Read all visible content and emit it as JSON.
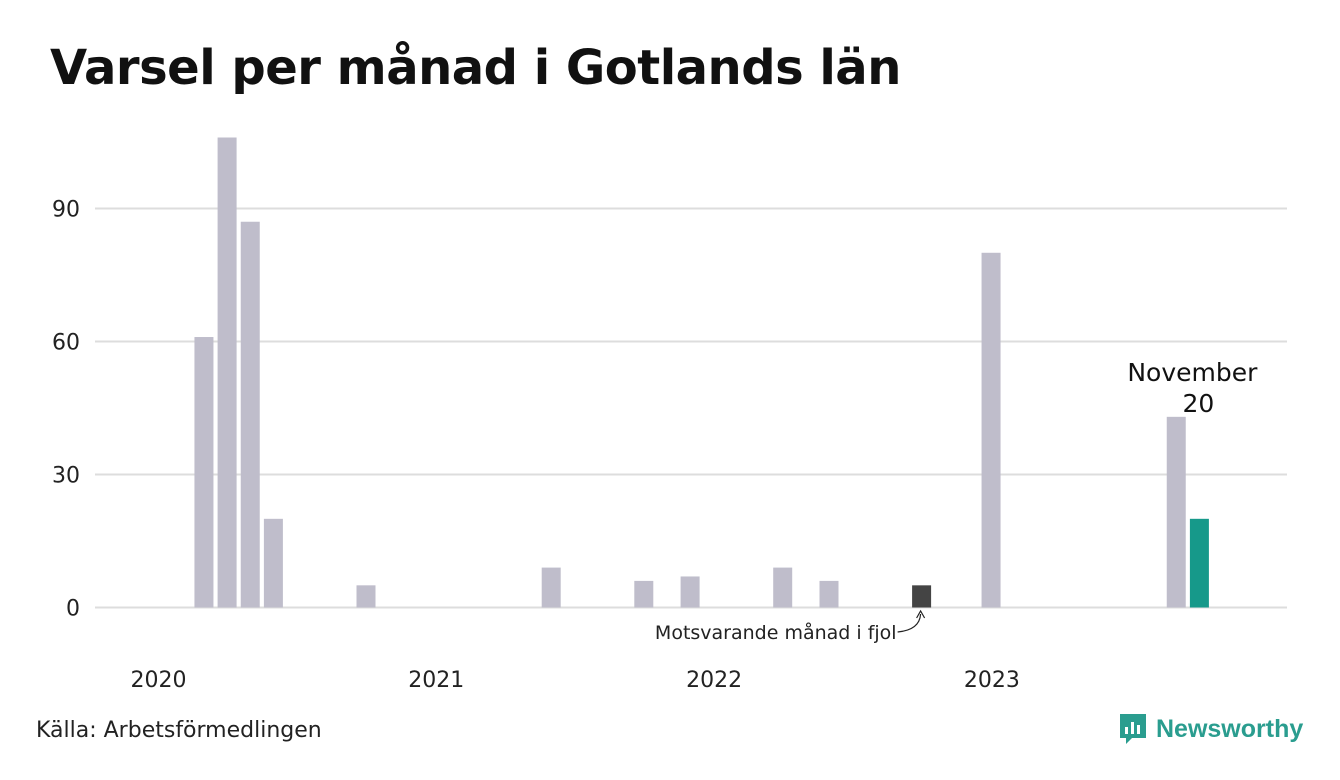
{
  "title": "Varsel per månad i Gotlands län",
  "source": "Källa: Arbetsförmedlingen",
  "brand": {
    "name": "Newsworthy",
    "icon": "newsworthy-logo-icon",
    "color": "#2a9d8f"
  },
  "colors": {
    "bar": "#bfbdcb",
    "highlight": "#16998a",
    "previous_year": "#444444",
    "grid": "#dddddd"
  },
  "chart_data": {
    "type": "bar",
    "title": "Varsel per månad i Gotlands län",
    "xlabel": "",
    "ylabel": "",
    "ylim": [
      0,
      106
    ],
    "yticks": [
      0,
      30,
      60,
      90
    ],
    "grid": true,
    "x_tick_labels": [
      "2020",
      "2021",
      "2022",
      "2023"
    ],
    "categories": [
      "2020-01",
      "2020-02",
      "2020-03",
      "2020-04",
      "2020-05",
      "2020-06",
      "2020-07",
      "2020-08",
      "2020-09",
      "2020-10",
      "2020-11",
      "2020-12",
      "2021-01",
      "2021-02",
      "2021-03",
      "2021-04",
      "2021-05",
      "2021-06",
      "2021-07",
      "2021-08",
      "2021-09",
      "2021-10",
      "2021-11",
      "2021-12",
      "2022-01",
      "2022-02",
      "2022-03",
      "2022-04",
      "2022-05",
      "2022-06",
      "2022-07",
      "2022-08",
      "2022-09",
      "2022-10",
      "2022-11",
      "2022-12",
      "2023-01",
      "2023-02",
      "2023-03",
      "2023-04",
      "2023-05",
      "2023-06",
      "2023-07",
      "2023-08",
      "2023-09",
      "2023-10",
      "2023-11"
    ],
    "values": [
      0,
      0,
      0,
      61,
      106,
      87,
      20,
      0,
      0,
      0,
      5,
      0,
      0,
      0,
      0,
      0,
      0,
      0,
      9,
      0,
      0,
      0,
      6,
      0,
      7,
      0,
      0,
      0,
      9,
      0,
      6,
      0,
      0,
      0,
      5,
      0,
      0,
      80,
      0,
      0,
      0,
      0,
      0,
      0,
      0,
      43,
      20
    ],
    "highlight": {
      "category": "2023-11",
      "label": "November",
      "value_label": "20"
    },
    "previous_year": {
      "category": "2022-11",
      "annotation": "Motsvarande månad i fjol"
    }
  }
}
